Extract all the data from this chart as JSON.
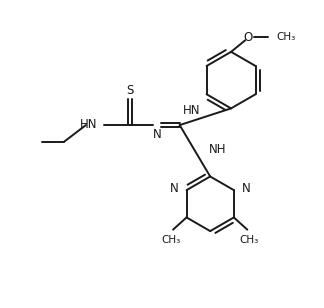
{
  "background": "#ffffff",
  "line_color": "#1a1a1a",
  "line_width": 1.4,
  "font_size": 8.5,
  "fig_width": 3.24,
  "fig_height": 3.08,
  "dpi": 100,
  "xlim": [
    0,
    10
  ],
  "ylim": [
    0,
    9.5
  ]
}
